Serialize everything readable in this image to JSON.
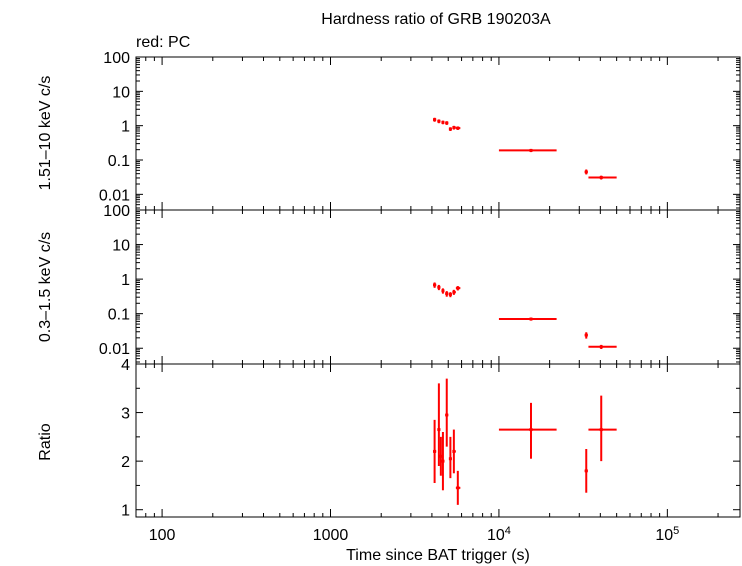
{
  "chart_data": {
    "type": "scatter",
    "title": "Hardness ratio of GRB 190203A",
    "note": "red: PC",
    "xlabel": "Time since BAT trigger (s)",
    "xscale": "log",
    "xlim": [
      70,
      270000
    ],
    "x_ticks": [
      "100",
      "1000",
      "10⁴",
      "10⁵"
    ],
    "series_color": "#ff0000",
    "panels": [
      {
        "name": "hard",
        "ylabel": "1.51–10 keV c/s",
        "yscale": "log",
        "ylim": [
          0.0035,
          100
        ],
        "y_ticks": [
          "100",
          "10",
          "1",
          "0.1",
          "0.01"
        ],
        "points": [
          {
            "x": 4150,
            "x_lo": 4060,
            "x_hi": 4240,
            "y": 1.5,
            "y_lo": 1.3,
            "y_hi": 1.7
          },
          {
            "x": 4400,
            "x_lo": 4310,
            "x_hi": 4490,
            "y": 1.35,
            "y_lo": 1.18,
            "y_hi": 1.52
          },
          {
            "x": 4650,
            "x_lo": 4560,
            "x_hi": 4740,
            "y": 1.25,
            "y_lo": 1.1,
            "y_hi": 1.4
          },
          {
            "x": 4900,
            "x_lo": 4800,
            "x_hi": 5000,
            "y": 1.2,
            "y_lo": 1.05,
            "y_hi": 1.35
          },
          {
            "x": 5150,
            "x_lo": 5050,
            "x_hi": 5250,
            "y": 0.8,
            "y_lo": 0.7,
            "y_hi": 0.9
          },
          {
            "x": 5400,
            "x_lo": 5300,
            "x_hi": 5550,
            "y": 0.88,
            "y_lo": 0.77,
            "y_hi": 0.99
          },
          {
            "x": 5700,
            "x_lo": 5550,
            "x_hi": 5900,
            "y": 0.85,
            "y_lo": 0.75,
            "y_hi": 0.95
          },
          {
            "x": 15500,
            "x_lo": 10000,
            "x_hi": 22000,
            "y": 0.19,
            "y_lo": 0.17,
            "y_hi": 0.21
          },
          {
            "x": 33000,
            "x_lo": 32300,
            "x_hi": 33700,
            "y": 0.045,
            "y_lo": 0.038,
            "y_hi": 0.053
          },
          {
            "x": 40500,
            "x_lo": 34000,
            "x_hi": 50000,
            "y": 0.031,
            "y_lo": 0.027,
            "y_hi": 0.035
          }
        ]
      },
      {
        "name": "soft",
        "ylabel": "0.3–1.5 keV c/s",
        "yscale": "log",
        "ylim": [
          0.0035,
          100
        ],
        "y_ticks": [
          "100",
          "10",
          "1",
          "0.1",
          "0.01"
        ],
        "points": [
          {
            "x": 4150,
            "x_lo": 4060,
            "x_hi": 4240,
            "y": 0.68,
            "y_lo": 0.56,
            "y_hi": 0.8
          },
          {
            "x": 4400,
            "x_lo": 4310,
            "x_hi": 4490,
            "y": 0.58,
            "y_lo": 0.48,
            "y_hi": 0.68
          },
          {
            "x": 4650,
            "x_lo": 4560,
            "x_hi": 4740,
            "y": 0.46,
            "y_lo": 0.38,
            "y_hi": 0.54
          },
          {
            "x": 4900,
            "x_lo": 4800,
            "x_hi": 5000,
            "y": 0.38,
            "y_lo": 0.31,
            "y_hi": 0.45
          },
          {
            "x": 5150,
            "x_lo": 5050,
            "x_hi": 5250,
            "y": 0.36,
            "y_lo": 0.3,
            "y_hi": 0.42
          },
          {
            "x": 5400,
            "x_lo": 5300,
            "x_hi": 5550,
            "y": 0.42,
            "y_lo": 0.35,
            "y_hi": 0.49
          },
          {
            "x": 5700,
            "x_lo": 5550,
            "x_hi": 5900,
            "y": 0.55,
            "y_lo": 0.47,
            "y_hi": 0.63
          },
          {
            "x": 15500,
            "x_lo": 10000,
            "x_hi": 22000,
            "y": 0.07,
            "y_lo": 0.063,
            "y_hi": 0.077
          },
          {
            "x": 33000,
            "x_lo": 32300,
            "x_hi": 33700,
            "y": 0.024,
            "y_lo": 0.019,
            "y_hi": 0.029
          },
          {
            "x": 40500,
            "x_lo": 34000,
            "x_hi": 50000,
            "y": 0.011,
            "y_lo": 0.0095,
            "y_hi": 0.0125
          }
        ]
      },
      {
        "name": "ratio",
        "ylabel": "Ratio",
        "yscale": "linear",
        "ylim": [
          0.85,
          4
        ],
        "y_ticks": [
          "4",
          "3",
          "2",
          "1"
        ],
        "points": [
          {
            "x": 4150,
            "x_lo": 4060,
            "x_hi": 4240,
            "y": 2.2,
            "y_lo": 1.55,
            "y_hi": 2.85
          },
          {
            "x": 4400,
            "x_lo": 4310,
            "x_hi": 4490,
            "y": 2.65,
            "y_lo": 1.9,
            "y_hi": 3.6
          },
          {
            "x": 4520,
            "x_lo": 4450,
            "x_hi": 4590,
            "y": 2.1,
            "y_lo": 1.7,
            "y_hi": 2.5
          },
          {
            "x": 4650,
            "x_lo": 4560,
            "x_hi": 4740,
            "y": 2.0,
            "y_lo": 1.4,
            "y_hi": 2.6
          },
          {
            "x": 4900,
            "x_lo": 4800,
            "x_hi": 5000,
            "y": 2.95,
            "y_lo": 2.3,
            "y_hi": 3.7
          },
          {
            "x": 5150,
            "x_lo": 5050,
            "x_hi": 5250,
            "y": 2.05,
            "y_lo": 1.65,
            "y_hi": 2.5
          },
          {
            "x": 5400,
            "x_lo": 5300,
            "x_hi": 5550,
            "y": 2.2,
            "y_lo": 1.75,
            "y_hi": 2.65
          },
          {
            "x": 5700,
            "x_lo": 5550,
            "x_hi": 5900,
            "y": 1.45,
            "y_lo": 1.1,
            "y_hi": 1.8
          },
          {
            "x": 15500,
            "x_lo": 10000,
            "x_hi": 22000,
            "y": 2.65,
            "y_lo": 2.05,
            "y_hi": 3.2
          },
          {
            "x": 33000,
            "x_lo": 32300,
            "x_hi": 33700,
            "y": 1.8,
            "y_lo": 1.35,
            "y_hi": 2.25
          },
          {
            "x": 40500,
            "x_lo": 34000,
            "x_hi": 50000,
            "y": 2.65,
            "y_lo": 2.0,
            "y_hi": 3.35
          }
        ]
      }
    ]
  }
}
